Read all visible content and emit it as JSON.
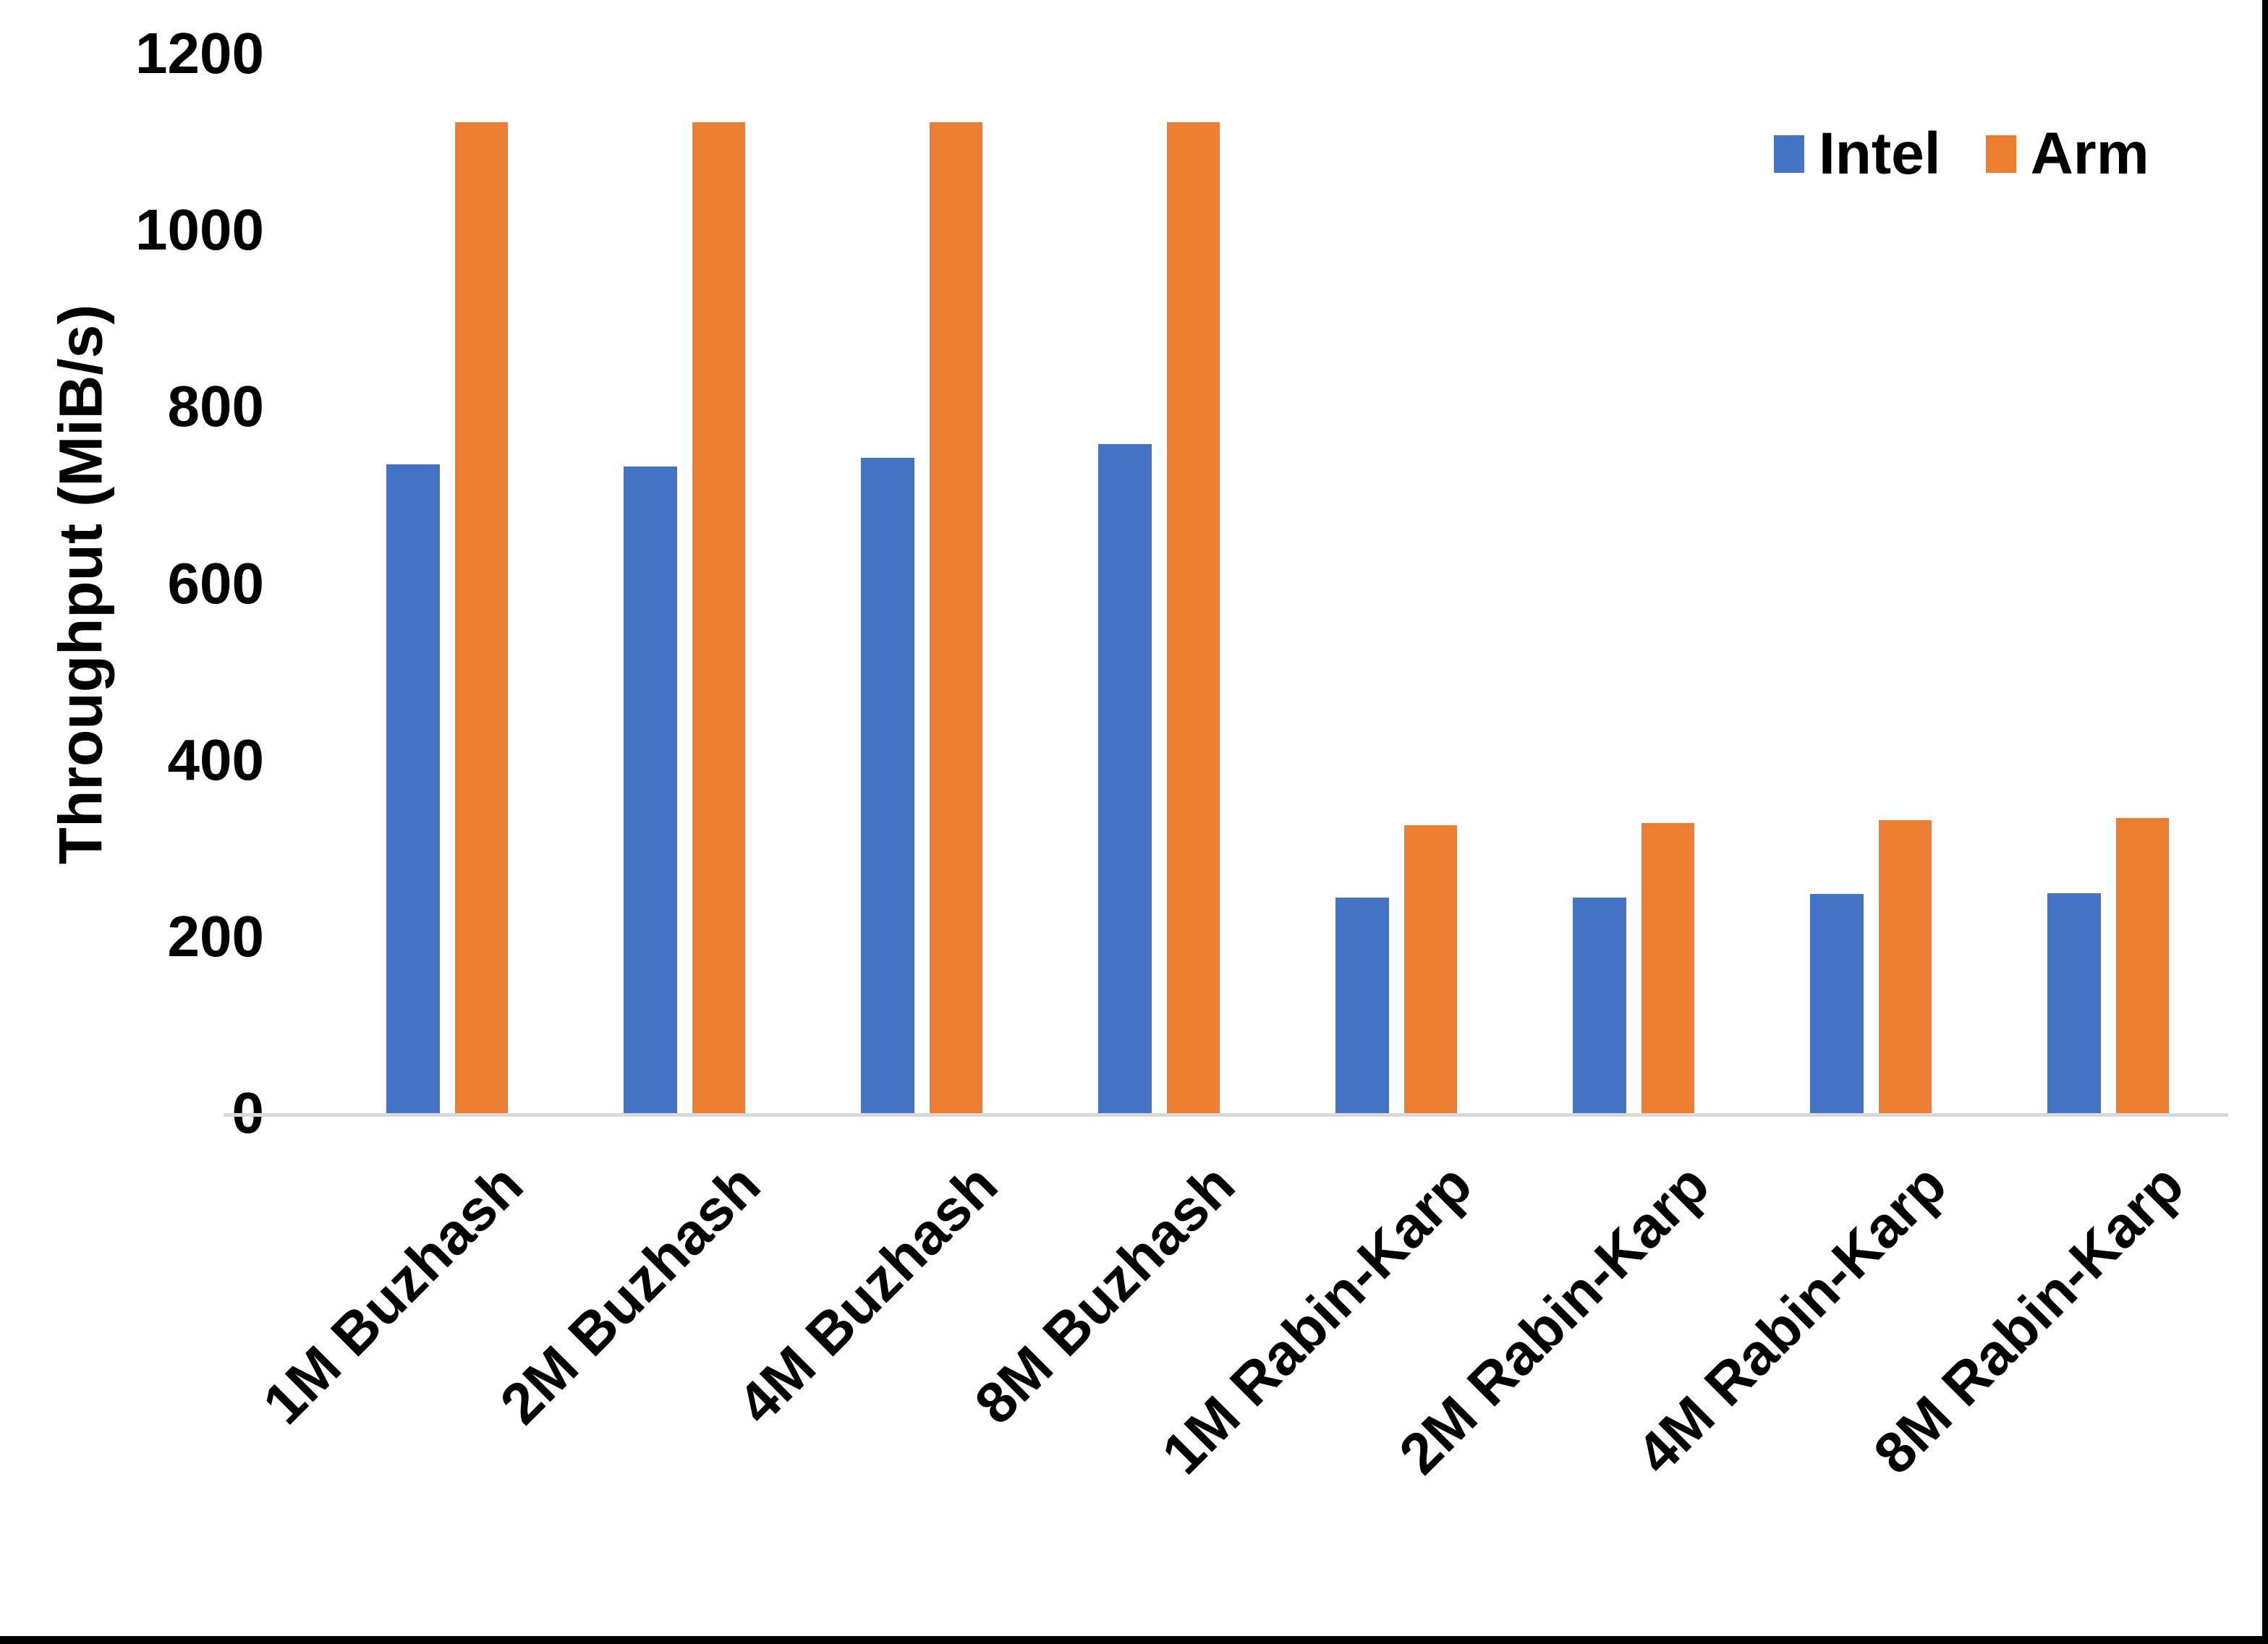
{
  "chart_data": {
    "type": "bar",
    "title": "",
    "xlabel": "",
    "ylabel": "Throughput (MiB/s)",
    "ylim": [
      0,
      1200
    ],
    "yticks": [
      0,
      200,
      400,
      600,
      800,
      1000,
      1200
    ],
    "grid": false,
    "legend_position": "top-right",
    "axis_line_color": "#d9d9d9",
    "categories": [
      "1M Buzhash",
      "2M Buzhash",
      "4M Buzhash",
      "8M Buzhash",
      "1M Rabin-Karp",
      "2M Rabin-Karp",
      "4M Rabin-Karp",
      "8M Rabin-Karp"
    ],
    "series": [
      {
        "name": "Intel",
        "color": "#4472c4",
        "values": [
          736,
          734,
          744,
          759,
          246,
          246,
          250,
          251
        ]
      },
      {
        "name": "Arm",
        "color": "#ed7d31",
        "values": [
          1124,
          1124,
          1124,
          1124,
          328,
          330,
          333,
          336
        ]
      }
    ]
  }
}
